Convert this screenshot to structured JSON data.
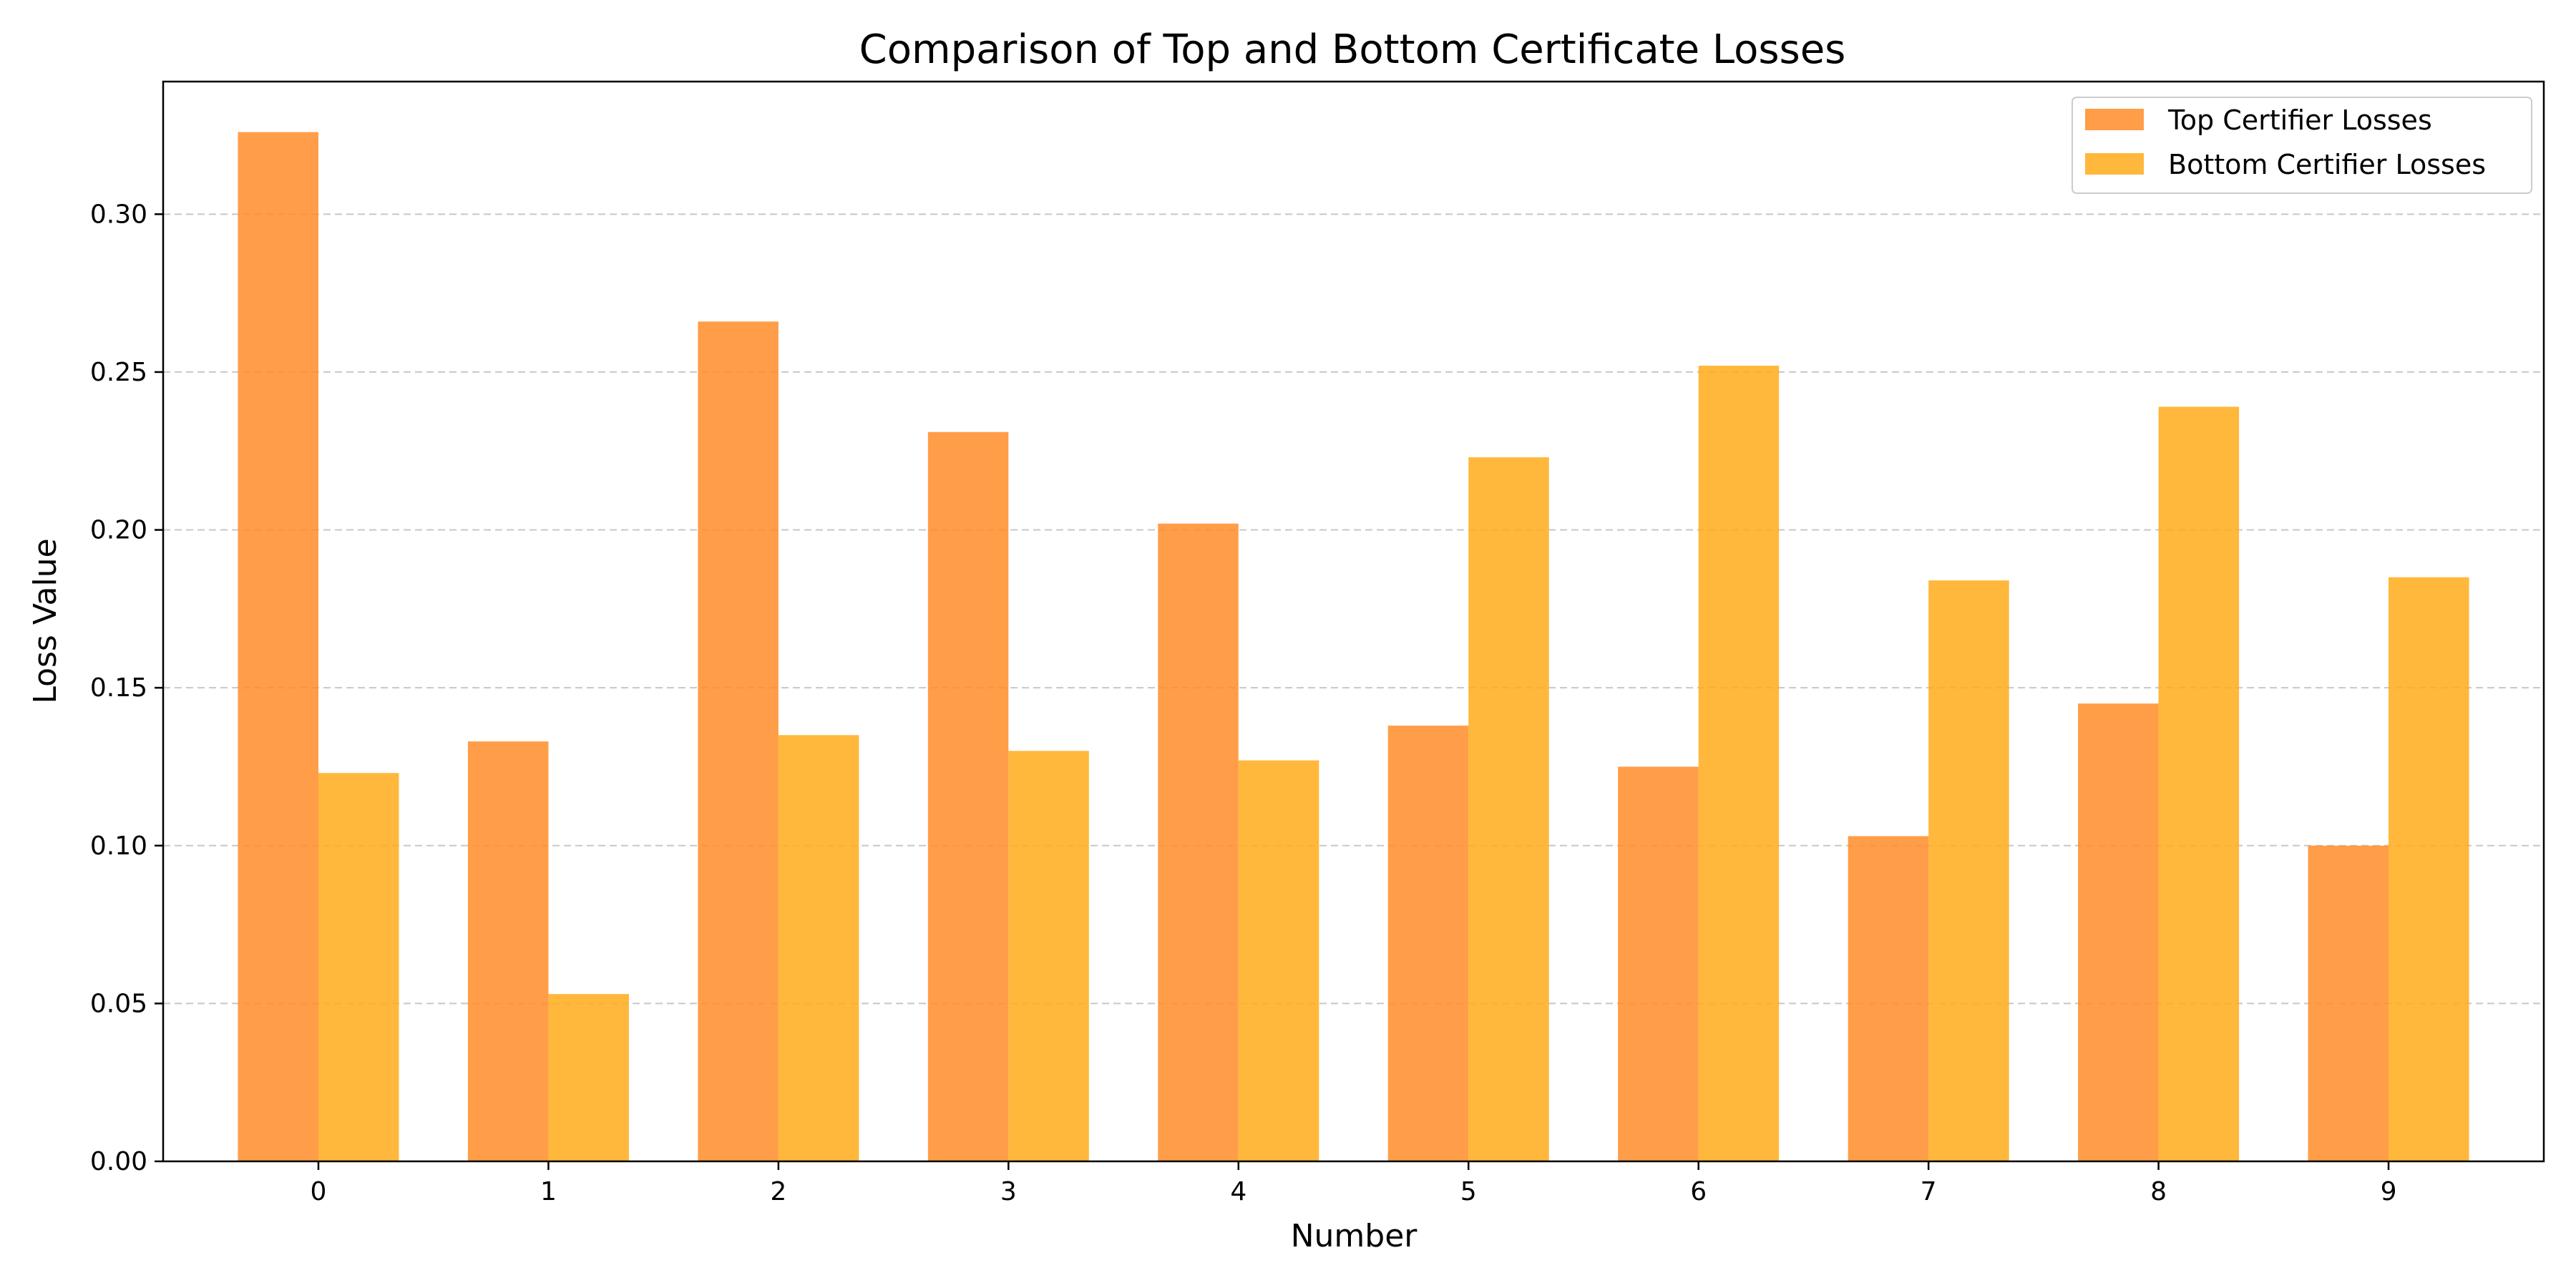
{
  "chart_data": {
    "type": "bar",
    "title": "Comparison of Top and Bottom Certificate Losses",
    "xlabel": "Number",
    "ylabel": "Loss Value",
    "categories": [
      "0",
      "1",
      "2",
      "3",
      "4",
      "5",
      "6",
      "7",
      "8",
      "9"
    ],
    "series": [
      {
        "name": "Top Certifier Losses",
        "color": "#FF8C28",
        "values": [
          0.326,
          0.133,
          0.266,
          0.231,
          0.202,
          0.138,
          0.125,
          0.103,
          0.145,
          0.1
        ]
      },
      {
        "name": "Bottom Certifier Losses",
        "color": "#FFAA1A",
        "values": [
          0.123,
          0.053,
          0.135,
          0.13,
          0.127,
          0.223,
          0.252,
          0.184,
          0.239,
          0.185
        ]
      }
    ],
    "yticks": [
      "0.00",
      "0.05",
      "0.10",
      "0.15",
      "0.20",
      "0.25",
      "0.30"
    ],
    "ylim": [
      0,
      0.342
    ],
    "grid": "horizontal dashed",
    "legend_position": "top-right"
  }
}
